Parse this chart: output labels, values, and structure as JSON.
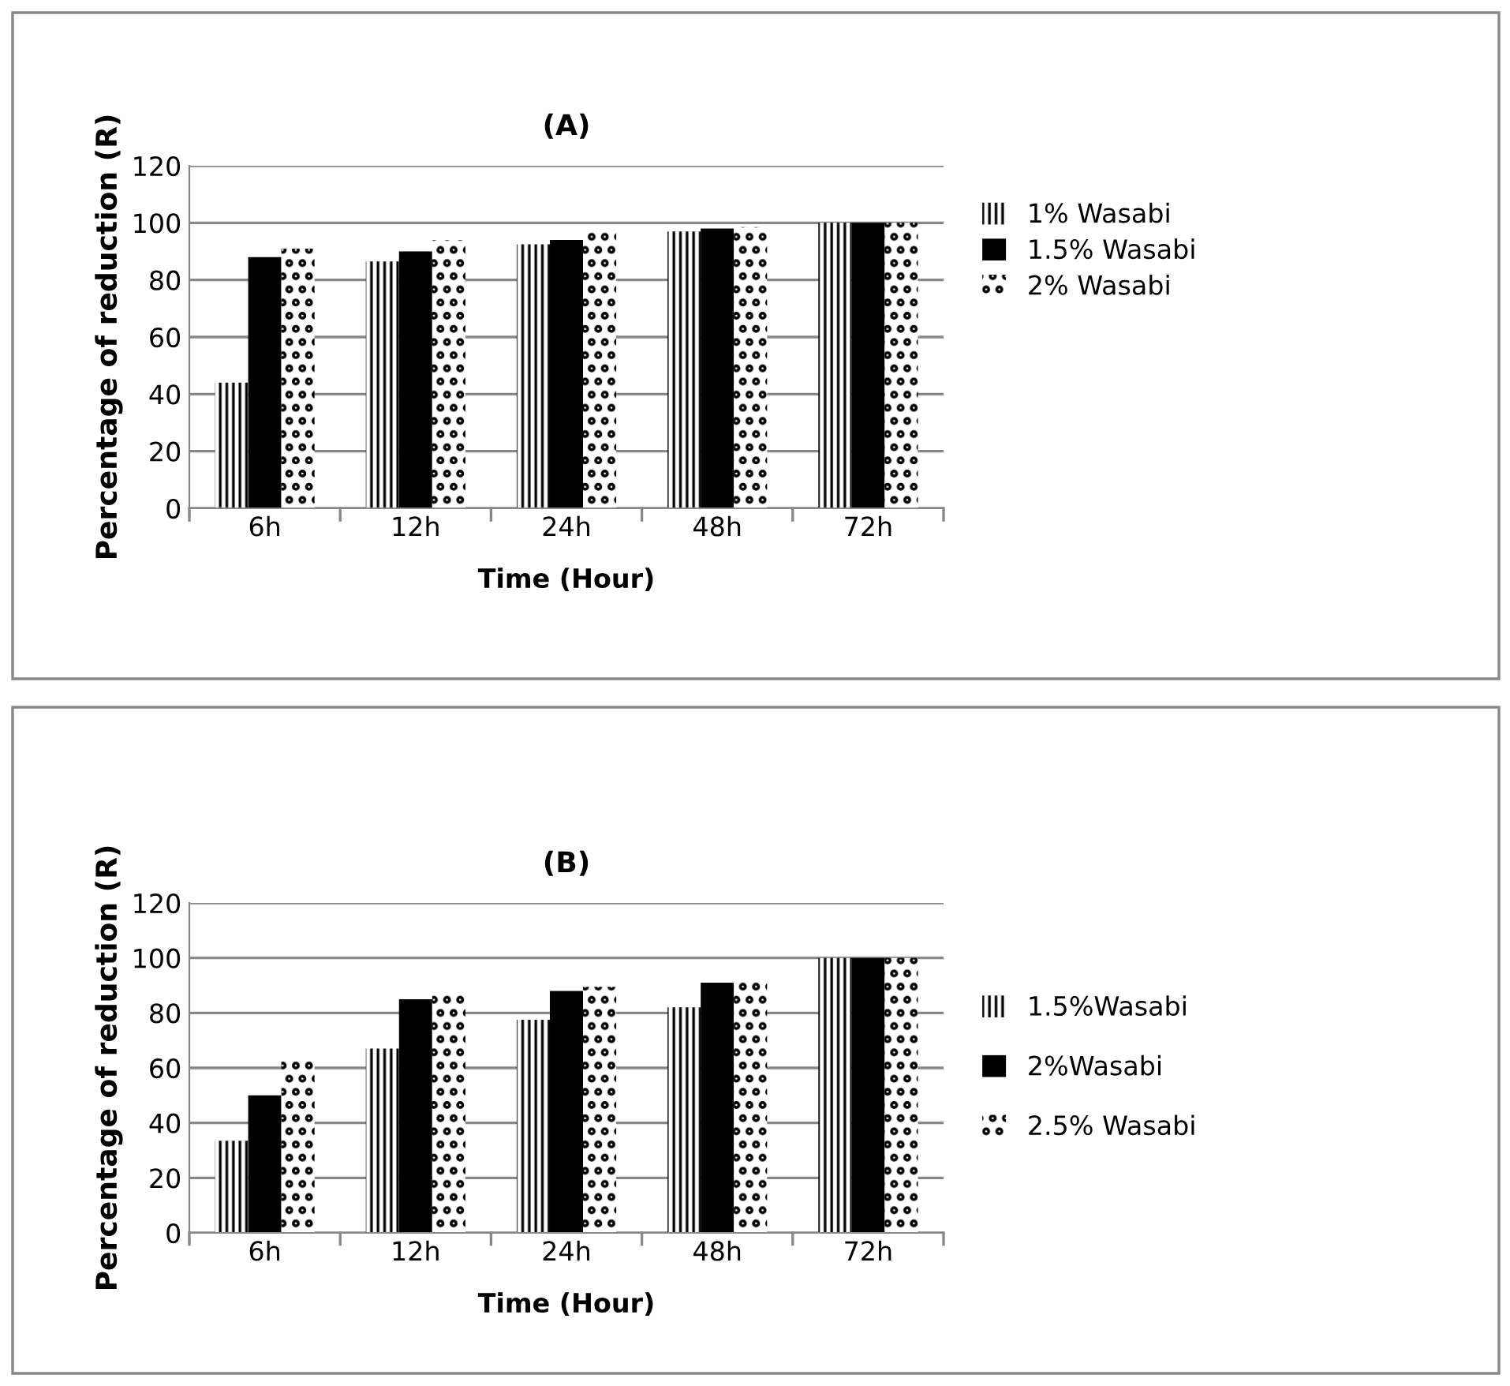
{
  "chart_data": [
    {
      "type": "bar",
      "title": "(A)",
      "xlabel": "Time (Hour)",
      "ylabel": "Percentage of reduction (R)",
      "categories": [
        "6h",
        "12h",
        "24h",
        "48h",
        "72h"
      ],
      "series": [
        {
          "name": "1% Wasabi",
          "color": "#000000",
          "values": [
            44,
            86.5,
            92.5,
            97,
            100
          ]
        },
        {
          "name": "1.5% Wasabi",
          "color": "#000000",
          "values": [
            88,
            90,
            94,
            98,
            100
          ]
        },
        {
          "name": "2% Wasabi",
          "color": "#000000",
          "values": [
            91,
            94,
            97,
            98.5,
            100
          ]
        }
      ],
      "ylim": [
        0,
        120
      ],
      "yticks": [
        0,
        20,
        40,
        60,
        80,
        100,
        120
      ],
      "grid": "y",
      "legend": "right"
    },
    {
      "type": "bar",
      "title": "(B)",
      "xlabel": "Time (Hour)",
      "ylabel": "Percentage of reduction (R)",
      "categories": [
        "6h",
        "12h",
        "24h",
        "48h",
        "72h"
      ],
      "series": [
        {
          "name": "1.5%Wasabi",
          "color": "#000000",
          "values": [
            33.5,
            67,
            77.5,
            82,
            100
          ]
        },
        {
          "name": "2%Wasabi",
          "color": "#000000",
          "values": [
            50,
            85,
            88,
            91,
            100
          ]
        },
        {
          "name": "2.5% Wasabi",
          "color": "#000000",
          "values": [
            64,
            86.5,
            89.5,
            92.5,
            100
          ]
        }
      ],
      "ylim": [
        0,
        120
      ],
      "yticks": [
        0,
        20,
        40,
        60,
        80,
        100,
        120
      ],
      "grid": "y",
      "legend": "right"
    }
  ]
}
